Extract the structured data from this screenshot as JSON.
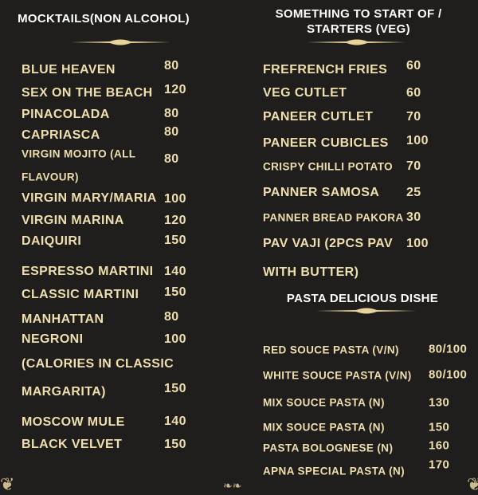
{
  "colors": {
    "background": "#1f1e1d",
    "item_text": "#efdfae",
    "heading_text": "#ffffff",
    "ornament": "#e8d49a"
  },
  "mocktails": {
    "title": "MOCKTAILS(NON ALCOHOL)",
    "items": [
      {
        "name": "BLUE HEAVEN",
        "price": "80"
      },
      {
        "name": "SEX ON THE BEACH",
        "price": "120"
      },
      {
        "name": "PINACOLADA",
        "price": "80"
      },
      {
        "name": "CAPRIASCA",
        "price": "80"
      },
      {
        "name": "VIRGIN MOJITO (ALL",
        "price": "80"
      },
      {
        "name": "FLAVOUR)",
        "price": ""
      },
      {
        "name": "VIRGIN MARY/MARIA",
        "price": "100"
      },
      {
        "name": "VIRGIN MARINA",
        "price": "120"
      },
      {
        "name": "DAIQUIRI",
        "price": "150"
      },
      {
        "name": "ESPRESSO MARTINI",
        "price": "140"
      },
      {
        "name": "CLASSIC MARTINI",
        "price": "150"
      },
      {
        "name": "MANHATTAN",
        "price": "80"
      },
      {
        "name": "NEGRONI",
        "price": "100"
      },
      {
        "name": "(CALORIES IN CLASSIC",
        "price": ""
      },
      {
        "name": "MARGARITA)",
        "price": "150"
      },
      {
        "name": "MOSCOW MULE",
        "price": "140"
      },
      {
        "name": "BLACK VELVET",
        "price": "150"
      }
    ]
  },
  "starters": {
    "title_line1": "SOMETHING TO START OF /",
    "title_line2": "STARTERS (VEG)",
    "items": [
      {
        "name": "FREFRENCH FRIES",
        "price": "60"
      },
      {
        "name": "VEG CUTLET",
        "price": "60"
      },
      {
        "name": "PANEER CUTLET",
        "price": "70"
      },
      {
        "name": "PANEER CUBICLES",
        "price": "100"
      },
      {
        "name": "CRISPY CHILLI POTATO",
        "price": "70"
      },
      {
        "name": "PANNER SAMOSA",
        "price": "25"
      },
      {
        "name": "PANNER BREAD PAKORA",
        "price": "30"
      },
      {
        "name": "PAV VAJI (2PCS PAV",
        "price": "100"
      },
      {
        "name": "WITH BUTTER)",
        "price": ""
      }
    ]
  },
  "pasta": {
    "title": "PASTA DELICIOUS DISHE",
    "items": [
      {
        "name": "RED SOUCE PASTA (V/N)",
        "price": "80/100"
      },
      {
        "name": "WHITE SOUCE PASTA (V/N)",
        "price": "80/100"
      },
      {
        "name": "MIX SOUCE PASTA (N)",
        "price": "130"
      },
      {
        "name": "MIX SOUCE PASTA (N)",
        "price": "150"
      },
      {
        "name": "PASTA BOLOGNESE (N)",
        "price": "160"
      },
      {
        "name": "APNA SPECIAL PASTA (N)",
        "price": "170"
      }
    ]
  }
}
